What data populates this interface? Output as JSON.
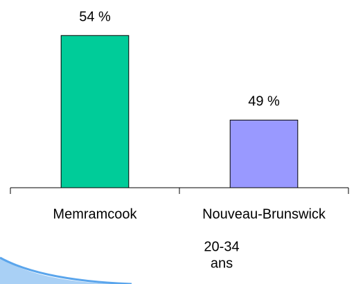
{
  "chart_data": {
    "type": "bar",
    "categories": [
      "Memramcook",
      "Nouveau-Brunswick"
    ],
    "values": [
      54,
      49
    ],
    "value_labels": [
      "54 %",
      "49 %"
    ],
    "colors": [
      "#00cc99",
      "#9999ff"
    ],
    "xlabel": [
      "20-34",
      "ans"
    ],
    "ylim": [
      45,
      56.1
    ]
  }
}
